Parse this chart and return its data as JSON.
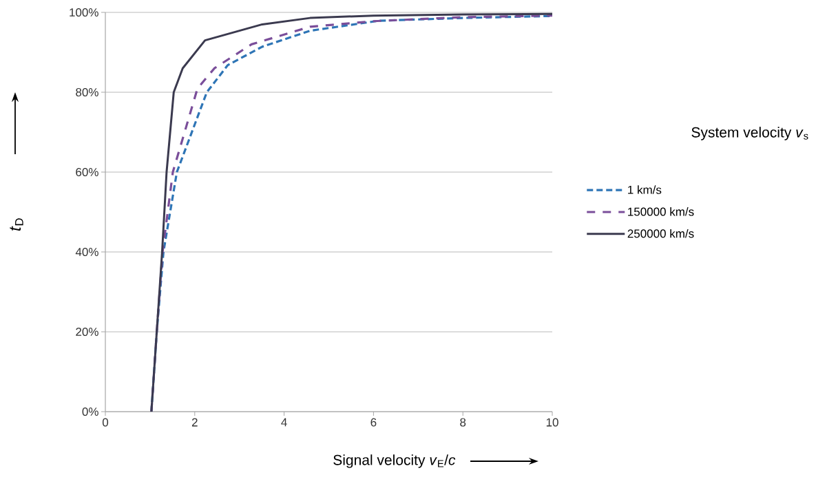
{
  "chart_data": {
    "type": "line",
    "xlabel": "Signal velocity *v*$_{E}$/*c*",
    "ylabel": "*t*$_{D}$",
    "legend_title": "System velocity *v*$_{s}$",
    "xlim": [
      0,
      10
    ],
    "xticks": [
      0,
      2,
      4,
      6,
      8,
      10
    ],
    "ylim": [
      0,
      100
    ],
    "yticks": [
      {
        "value": 0,
        "label": "0%"
      },
      {
        "value": 20,
        "label": "20%"
      },
      {
        "value": 40,
        "label": "40%"
      },
      {
        "value": 60,
        "label": "60%"
      },
      {
        "value": 80,
        "label": "80%"
      },
      {
        "value": 100,
        "label": "100%"
      }
    ],
    "grid": "y",
    "legend": "right",
    "series": [
      {
        "name": "1 km/s",
        "color": "#2e75b6",
        "line_style": "dashed",
        "x": [
          1.03,
          1.15,
          1.3,
          1.6,
          2.27,
          2.74,
          3.51,
          4.58,
          6.12,
          8,
          10
        ],
        "values": [
          0,
          20,
          40,
          60,
          80,
          86.8,
          91.4,
          95.4,
          97.9,
          98.6,
          99.1
        ]
      },
      {
        "name": "150000 km/s",
        "color": "#7a4e9a",
        "line_style": "dashed",
        "x": [
          1.03,
          1.15,
          1.28,
          1.51,
          2.06,
          2.44,
          3.27,
          4.58,
          6,
          8,
          10
        ],
        "values": [
          0,
          20,
          40,
          60,
          80.9,
          86,
          92,
          96.4,
          97.8,
          98.8,
          99.2
        ]
      },
      {
        "name": "250000 km/s",
        "color": "#3b3a4f",
        "line_style": "solid",
        "x": [
          1.03,
          1.15,
          1.27,
          1.37,
          1.53,
          1.73,
          2.23,
          3.51,
          4.58,
          6,
          8,
          10
        ],
        "values": [
          0,
          20,
          40,
          60,
          80,
          86,
          93,
          97,
          98.6,
          99.2,
          99.5,
          99.6
        ]
      }
    ]
  }
}
